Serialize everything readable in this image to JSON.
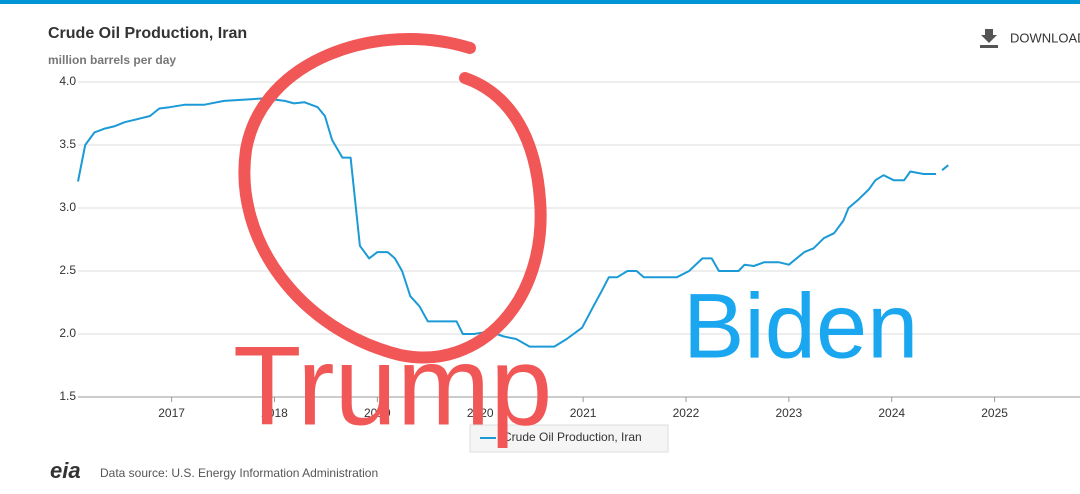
{
  "chart_data": {
    "type": "line",
    "title": "Crude Oil Production, Iran",
    "subtitle": "million barrels per day",
    "download_label": "DOWNLOAD",
    "logo": "eia",
    "source": "Data source: U.S. Energy Information Administration",
    "annotations": [
      "Trump",
      "Biden"
    ],
    "x": [
      2016.09,
      2016.16,
      2016.25,
      2016.35,
      2016.45,
      2016.54,
      2016.64,
      2016.79,
      2016.88,
      2016.98,
      2017.13,
      2017.32,
      2017.51,
      2017.71,
      2017.9,
      2018.1,
      2018.19,
      2018.29,
      2018.42,
      2018.49,
      2018.56,
      2018.66,
      2018.74,
      2018.83,
      2018.92,
      2019.0,
      2019.1,
      2019.17,
      2019.24,
      2019.32,
      2019.41,
      2019.49,
      2019.65,
      2019.77,
      2019.83,
      2019.94,
      2020.09,
      2020.23,
      2020.35,
      2020.48,
      2020.72,
      2020.84,
      2020.99,
      2021.1,
      2021.18,
      2021.25,
      2021.33,
      2021.43,
      2021.52,
      2021.59,
      2021.91,
      2022.03,
      2022.16,
      2022.25,
      2022.32,
      2022.51,
      2022.57,
      2022.66,
      2022.76,
      2022.9,
      2023.0,
      2023.15,
      2023.24,
      2023.34,
      2023.44,
      2023.53,
      2023.58,
      2023.68,
      2023.78,
      2023.84,
      2023.92,
      2024.02,
      2024.12,
      2024.18,
      2024.31,
      2024.43,
      2024.46,
      2024.49,
      2024.55
    ],
    "series": [
      {
        "name": "Crude Oil Production, Iran",
        "color": "#1c9ad6",
        "values": [
          3.21,
          3.5,
          3.6,
          3.63,
          3.65,
          3.68,
          3.7,
          3.73,
          3.79,
          3.8,
          3.82,
          3.82,
          3.85,
          3.86,
          3.87,
          3.85,
          3.83,
          3.84,
          3.8,
          3.73,
          3.54,
          3.4,
          3.4,
          2.7,
          2.6,
          2.65,
          2.65,
          2.6,
          2.5,
          2.3,
          2.22,
          2.1,
          2.1,
          2.1,
          2.0,
          2.0,
          2.02,
          1.98,
          1.96,
          1.9,
          1.9,
          1.96,
          2.05,
          2.22,
          2.34,
          2.45,
          2.45,
          2.5,
          2.5,
          2.45,
          2.45,
          2.5,
          2.6,
          2.6,
          2.5,
          2.5,
          2.55,
          2.54,
          2.57,
          2.57,
          2.55,
          2.65,
          2.68,
          2.76,
          2.8,
          2.9,
          3.0,
          3.07,
          3.15,
          3.22,
          3.26,
          3.22,
          3.22,
          3.29,
          3.27,
          3.27,
          null,
          3.3,
          3.34
        ]
      }
    ],
    "xlim": [
      2016.09,
      2025.83
    ],
    "xticks": [
      2017,
      2018,
      2019,
      2020,
      2021,
      2022,
      2023,
      2024,
      2025
    ],
    "ylim": [
      1.5,
      4.0
    ],
    "yticks": [
      1.5,
      {
        "value": 2,
        "label": "2.0"
      },
      2.5,
      {
        "value": 3,
        "label": "3.0"
      },
      3.5,
      {
        "value": 4,
        "label": "4.0"
      }
    ],
    "grid": true
  }
}
